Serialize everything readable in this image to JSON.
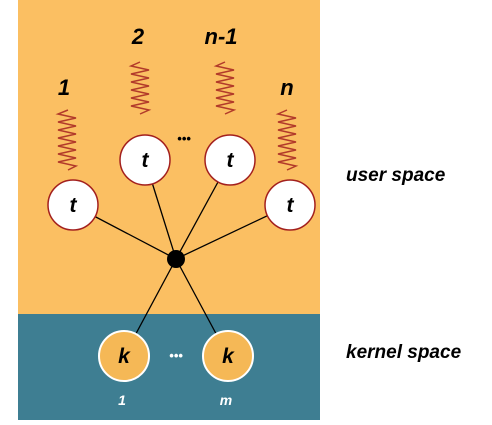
{
  "regions": {
    "user_label": "user space",
    "kernel_label": "kernel space"
  },
  "threads": [
    {
      "id": "1",
      "label": "1",
      "node": "t"
    },
    {
      "id": "2",
      "label": "2",
      "node": "t"
    },
    {
      "id": "n-1",
      "label": "n-1",
      "node": "t"
    },
    {
      "id": "n",
      "label": "n",
      "node": "t"
    }
  ],
  "ellipsis_user": "•••",
  "kernel_threads": [
    {
      "node": "k",
      "label": "1"
    },
    {
      "node": "k",
      "label": "m"
    }
  ],
  "ellipsis_kernel": "•••",
  "colors": {
    "user_bg": "#FBBF62",
    "kernel_bg": "#3E7E92",
    "thread_fill": "#FFFFFF",
    "thread_stroke": "#A3201E",
    "kernel_fill": "#F5B856",
    "squiggle": "#B23A2A",
    "line": "#000000"
  }
}
